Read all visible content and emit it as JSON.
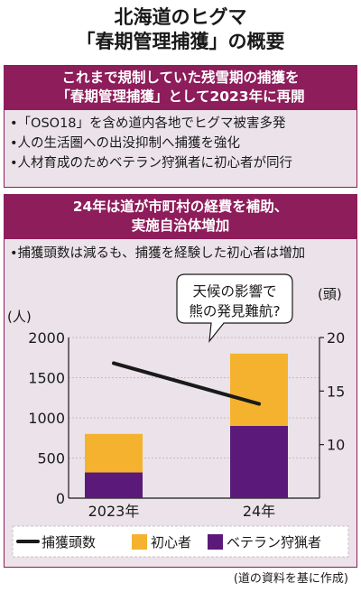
{
  "header": {
    "title_line1": "北海道のヒグマ",
    "title_line2": "「春期管理捕獲」の概要"
  },
  "panel1": {
    "heading_line1": "これまで規制していた残雪期の捕獲を",
    "heading_line2": "「春期管理捕獲」として2023年に再開",
    "bullets": [
      "•「OSO18」を含め道内各地でヒグマ被害多発",
      "•人の生活圏への出没抑制へ捕獲を強化",
      "•人材育成のためベテラン狩猟者に初心者が同行"
    ]
  },
  "panel2": {
    "heading_line1": "24年は道が市町村の経費を補助、",
    "heading_line2": "実施自治体増加",
    "note": "•捕獲頭数は減るも、捕獲を経験した初心者は増加"
  },
  "colors": {
    "panel_heading": "#8e1d5b",
    "panel_bg": "#ebe3e9",
    "beginner": "#f4b22e",
    "veteran": "#5b1a7a",
    "line": "#1a1a1a"
  },
  "chart_data": {
    "type": "bar",
    "categories": [
      "2023年",
      "24年"
    ],
    "series": [
      {
        "name": "ベテラン狩猟者",
        "values": [
          320,
          900
        ],
        "color": "#5b1a7a"
      },
      {
        "name": "初心者",
        "values": [
          480,
          900
        ],
        "color": "#f4b22e"
      }
    ],
    "stacked": true,
    "left_axis": {
      "unit": "(人)",
      "ylim": [
        0,
        2000
      ],
      "ticks": [
        "0",
        "500",
        "1000",
        "1500",
        "2000"
      ]
    },
    "right_axis": {
      "unit": "(頭)",
      "ylim": [
        5,
        20
      ],
      "ticks": [
        "10",
        "15",
        "20"
      ]
    },
    "line_series": {
      "name": "捕獲頭数",
      "values": [
        17.6,
        13.8
      ]
    },
    "annotation": {
      "line1": "天候の影響で",
      "line2": "熊の発見難航?"
    },
    "legend": [
      "捕獲頭数",
      "初心者",
      "ベテラン狩猟者"
    ],
    "legend_position": "bottom"
  },
  "footer": {
    "source": "(道の資料を基に作成)"
  }
}
